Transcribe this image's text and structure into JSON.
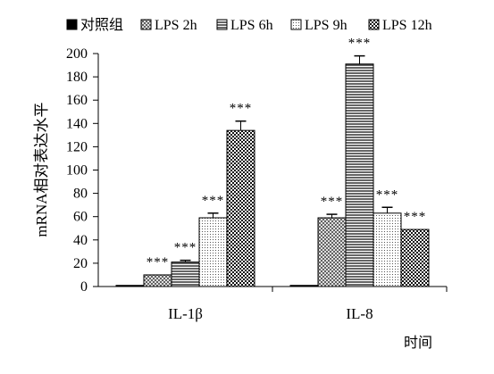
{
  "chart_data": {
    "type": "bar",
    "title": "",
    "ylabel": "mRNA相对表达水平",
    "xlabel": "时间",
    "ylim": [
      0,
      200
    ],
    "yticks": [
      0,
      20,
      40,
      60,
      80,
      100,
      120,
      140,
      160,
      180,
      200
    ],
    "categories": [
      "IL-1β",
      "IL-8"
    ],
    "legend_position": "top",
    "series": [
      {
        "name": "对照组",
        "pattern": "solid-black",
        "values": [
          1,
          1
        ],
        "errors": [
          0,
          0
        ],
        "significance": [
          "",
          ""
        ]
      },
      {
        "name": "LPS 2h",
        "pattern": "crosshatch-fine",
        "values": [
          10,
          59
        ],
        "errors": [
          0,
          3
        ],
        "significance": [
          "***",
          "***"
        ]
      },
      {
        "name": "LPS 6h",
        "pattern": "horizontal-lines",
        "values": [
          21,
          191
        ],
        "errors": [
          1.5,
          7
        ],
        "significance": [
          "***",
          "***"
        ]
      },
      {
        "name": "LPS 9h",
        "pattern": "dotted",
        "values": [
          59,
          63
        ],
        "errors": [
          4,
          5
        ],
        "significance": [
          "***",
          "***"
        ]
      },
      {
        "name": "LPS 12h",
        "pattern": "checkered",
        "values": [
          134,
          49
        ],
        "errors": [
          8,
          0
        ],
        "significance": [
          "***",
          "***"
        ]
      }
    ]
  }
}
